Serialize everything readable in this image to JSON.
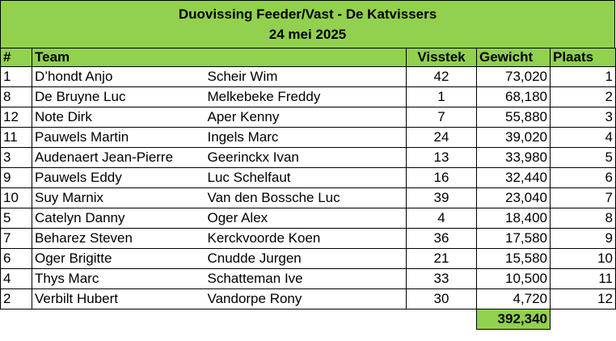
{
  "title": {
    "line1": "Duovissing Feeder/Vast - De Katvissers",
    "line2": "24 mei 2025"
  },
  "header": {
    "nr": "#",
    "team": "Team",
    "visstek": "Visstek",
    "gewicht": "Gewicht",
    "plaats": "Plaats"
  },
  "rows": [
    {
      "nr": "1",
      "angler1": "D’hondt Anjo",
      "angler2": "Scheir Wim",
      "visstek": "42",
      "gewicht": "73,020",
      "plaats": "1"
    },
    {
      "nr": "8",
      "angler1": "De Bruyne Luc",
      "angler2": "Melkebeke Freddy",
      "visstek": "1",
      "gewicht": "68,180",
      "plaats": "2"
    },
    {
      "nr": "12",
      "angler1": "Note Dirk",
      "angler2": "Aper Kenny",
      "visstek": "7",
      "gewicht": "55,880",
      "plaats": "3"
    },
    {
      "nr": "11",
      "angler1": "Pauwels Martin",
      "angler2": "Ingels Marc",
      "visstek": "24",
      "gewicht": "39,020",
      "plaats": "4"
    },
    {
      "nr": "3",
      "angler1": "Audenaert Jean-Pierre",
      "angler2": "Geerinckx Ivan",
      "visstek": "13",
      "gewicht": "33,980",
      "plaats": "5"
    },
    {
      "nr": "9",
      "angler1": "Pauwels Eddy",
      "angler2": "Luc Schelfaut",
      "visstek": "16",
      "gewicht": "32,440",
      "plaats": "6"
    },
    {
      "nr": "10",
      "angler1": "Suy Marnix",
      "angler2": "Van den Bossche Luc",
      "visstek": "39",
      "gewicht": "23,040",
      "plaats": "7"
    },
    {
      "nr": "5",
      "angler1": "Catelyn Danny",
      "angler2": "Oger Alex",
      "visstek": "4",
      "gewicht": "18,400",
      "plaats": "8"
    },
    {
      "nr": "7",
      "angler1": "Beharez Steven",
      "angler2": "Kerckvoorde Koen",
      "visstek": "36",
      "gewicht": "17,580",
      "plaats": "9"
    },
    {
      "nr": "6",
      "angler1": "Oger Brigitte",
      "angler2": "Cnudde Jurgen",
      "visstek": "21",
      "gewicht": "15,580",
      "plaats": "10"
    },
    {
      "nr": "4",
      "angler1": "Thys Marc",
      "angler2": "Schatteman Ive",
      "visstek": "33",
      "gewicht": "10,500",
      "plaats": "11"
    },
    {
      "nr": "2",
      "angler1": "Verbilt Hubert",
      "angler2": "Vandorpe Rony",
      "visstek": "30",
      "gewicht": "4,720",
      "plaats": "12"
    }
  ],
  "total": {
    "gewicht": "392,340"
  },
  "colors": {
    "accent_green": "#92d050"
  }
}
